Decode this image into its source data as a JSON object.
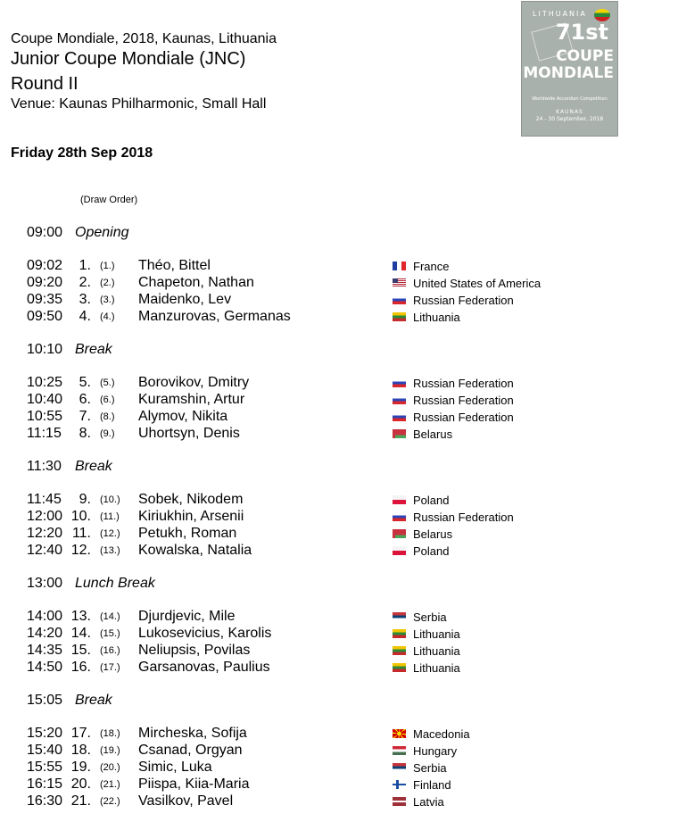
{
  "header": {
    "line1": "Coupe Mondiale, 2018, Kaunas, Lithuania",
    "line2": "Junior Coupe Mondiale (JNC)",
    "line3": "Round II",
    "line4": "Venue: Kaunas Philharmonic, Small Hall"
  },
  "poster": {
    "country": "LITHUANIA",
    "edition": "71st",
    "title1": "COUPE",
    "title2": "MONDIALE",
    "subtitle": "Worldwide Accordion Competition",
    "city": "KAUNAS",
    "dates": "24 - 30 September, 2018"
  },
  "day": "Friday 28th Sep 2018",
  "draw_order_label": "(Draw Order)",
  "schedule": [
    {
      "time": "09:00",
      "label": "Opening",
      "rows": [
        {
          "time": "09:02",
          "no": "1.",
          "draw": "(1.)",
          "name": "Théo, Bittel",
          "country": "France",
          "flag": "fr"
        },
        {
          "time": "09:20",
          "no": "2.",
          "draw": "(2.)",
          "name": "Chapeton, Nathan",
          "country": "United States of America",
          "flag": "us"
        },
        {
          "time": "09:35",
          "no": "3.",
          "draw": "(3.)",
          "name": "Maidenko, Lev",
          "country": "Russian Federation",
          "flag": "ru"
        },
        {
          "time": "09:50",
          "no": "4.",
          "draw": "(4.)",
          "name": "Manzurovas, Germanas",
          "country": "Lithuania",
          "flag": "lt"
        }
      ]
    },
    {
      "time": "10:10",
      "label": "Break",
      "rows": [
        {
          "time": "10:25",
          "no": "5.",
          "draw": "(5.)",
          "name": "Borovikov, Dmitry",
          "country": "Russian Federation",
          "flag": "ru"
        },
        {
          "time": "10:40",
          "no": "6.",
          "draw": "(6.)",
          "name": "Kuramshin, Artur",
          "country": "Russian Federation",
          "flag": "ru"
        },
        {
          "time": "10:55",
          "no": "7.",
          "draw": "(8.)",
          "name": "Alymov, Nikita",
          "country": "Russian Federation",
          "flag": "ru"
        },
        {
          "time": "11:15",
          "no": "8.",
          "draw": "(9.)",
          "name": "Uhortsyn, Denis",
          "country": "Belarus",
          "flag": "by"
        }
      ]
    },
    {
      "time": "11:30",
      "label": "Break",
      "rows": [
        {
          "time": "11:45",
          "no": "9.",
          "draw": "(10.)",
          "name": "Sobek, Nikodem",
          "country": "Poland",
          "flag": "pl"
        },
        {
          "time": "12:00",
          "no": "10.",
          "draw": "(11.)",
          "name": "Kiriukhin, Arsenii",
          "country": "Russian Federation",
          "flag": "ru"
        },
        {
          "time": "12:20",
          "no": "11.",
          "draw": "(12.)",
          "name": "Petukh, Roman",
          "country": "Belarus",
          "flag": "by"
        },
        {
          "time": "12:40",
          "no": "12.",
          "draw": "(13.)",
          "name": "Kowalska, Natalia",
          "country": "Poland",
          "flag": "pl"
        }
      ]
    },
    {
      "time": "13:00",
      "label": "Lunch Break",
      "rows": [
        {
          "time": "14:00",
          "no": "13.",
          "draw": "(14.)",
          "name": "Djurdjevic, Mile",
          "country": "Serbia",
          "flag": "rs"
        },
        {
          "time": "14:20",
          "no": "14.",
          "draw": "(15.)",
          "name": "Lukosevicius, Karolis",
          "country": "Lithuania",
          "flag": "lt"
        },
        {
          "time": "14:35",
          "no": "15.",
          "draw": "(16.)",
          "name": "Neliupsis, Povilas",
          "country": "Lithuania",
          "flag": "lt"
        },
        {
          "time": "14:50",
          "no": "16.",
          "draw": "(17.)",
          "name": "Garsanovas, Paulius",
          "country": "Lithuania",
          "flag": "lt"
        }
      ]
    },
    {
      "time": "15:05",
      "label": "Break",
      "rows": [
        {
          "time": "15:20",
          "no": "17.",
          "draw": "(18.)",
          "name": "Mircheska, Sofija",
          "country": "Macedonia",
          "flag": "mk"
        },
        {
          "time": "15:40",
          "no": "18.",
          "draw": "(19.)",
          "name": "Csanad, Orgyan",
          "country": "Hungary",
          "flag": "hu"
        },
        {
          "time": "15:55",
          "no": "19.",
          "draw": "(20.)",
          "name": "Simic, Luka",
          "country": "Serbia",
          "flag": "rs"
        },
        {
          "time": "16:15",
          "no": "20.",
          "draw": "(21.)",
          "name": "Piispa, Kiia-Maria",
          "country": "Finland",
          "flag": "fi"
        },
        {
          "time": "16:30",
          "no": "21.",
          "draw": "(22.)",
          "name": "Vasilkov, Pavel",
          "country": "Latvia",
          "flag": "lv"
        }
      ]
    }
  ]
}
